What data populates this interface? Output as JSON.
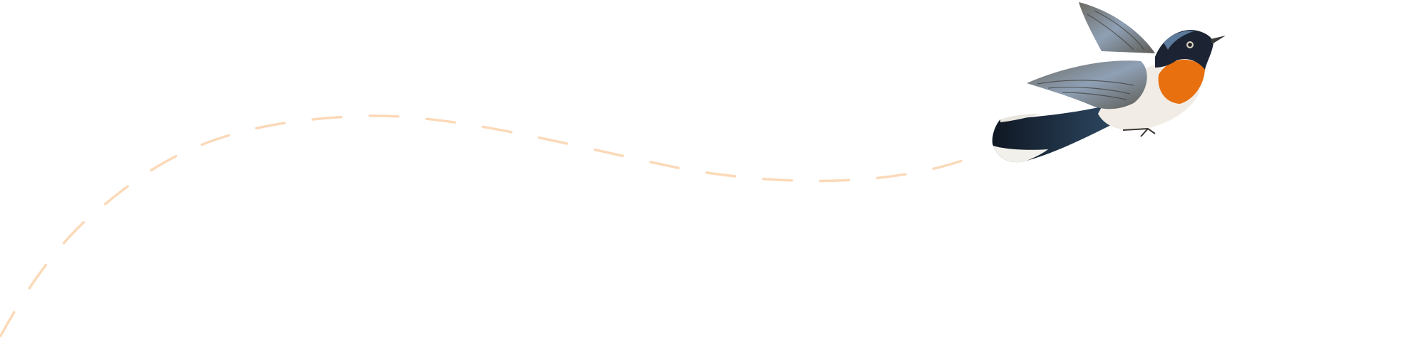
{
  "illustration": {
    "subject": "bird-icon",
    "flight_path_icon": "dashed-flight-path",
    "colors": {
      "background": "#ffffff",
      "path": "#fbd9b8",
      "throat": "#e8700f",
      "head": "#1c2433",
      "wing": "#7d8490",
      "belly": "#f1ede6",
      "tail": "#1f2d40"
    }
  }
}
